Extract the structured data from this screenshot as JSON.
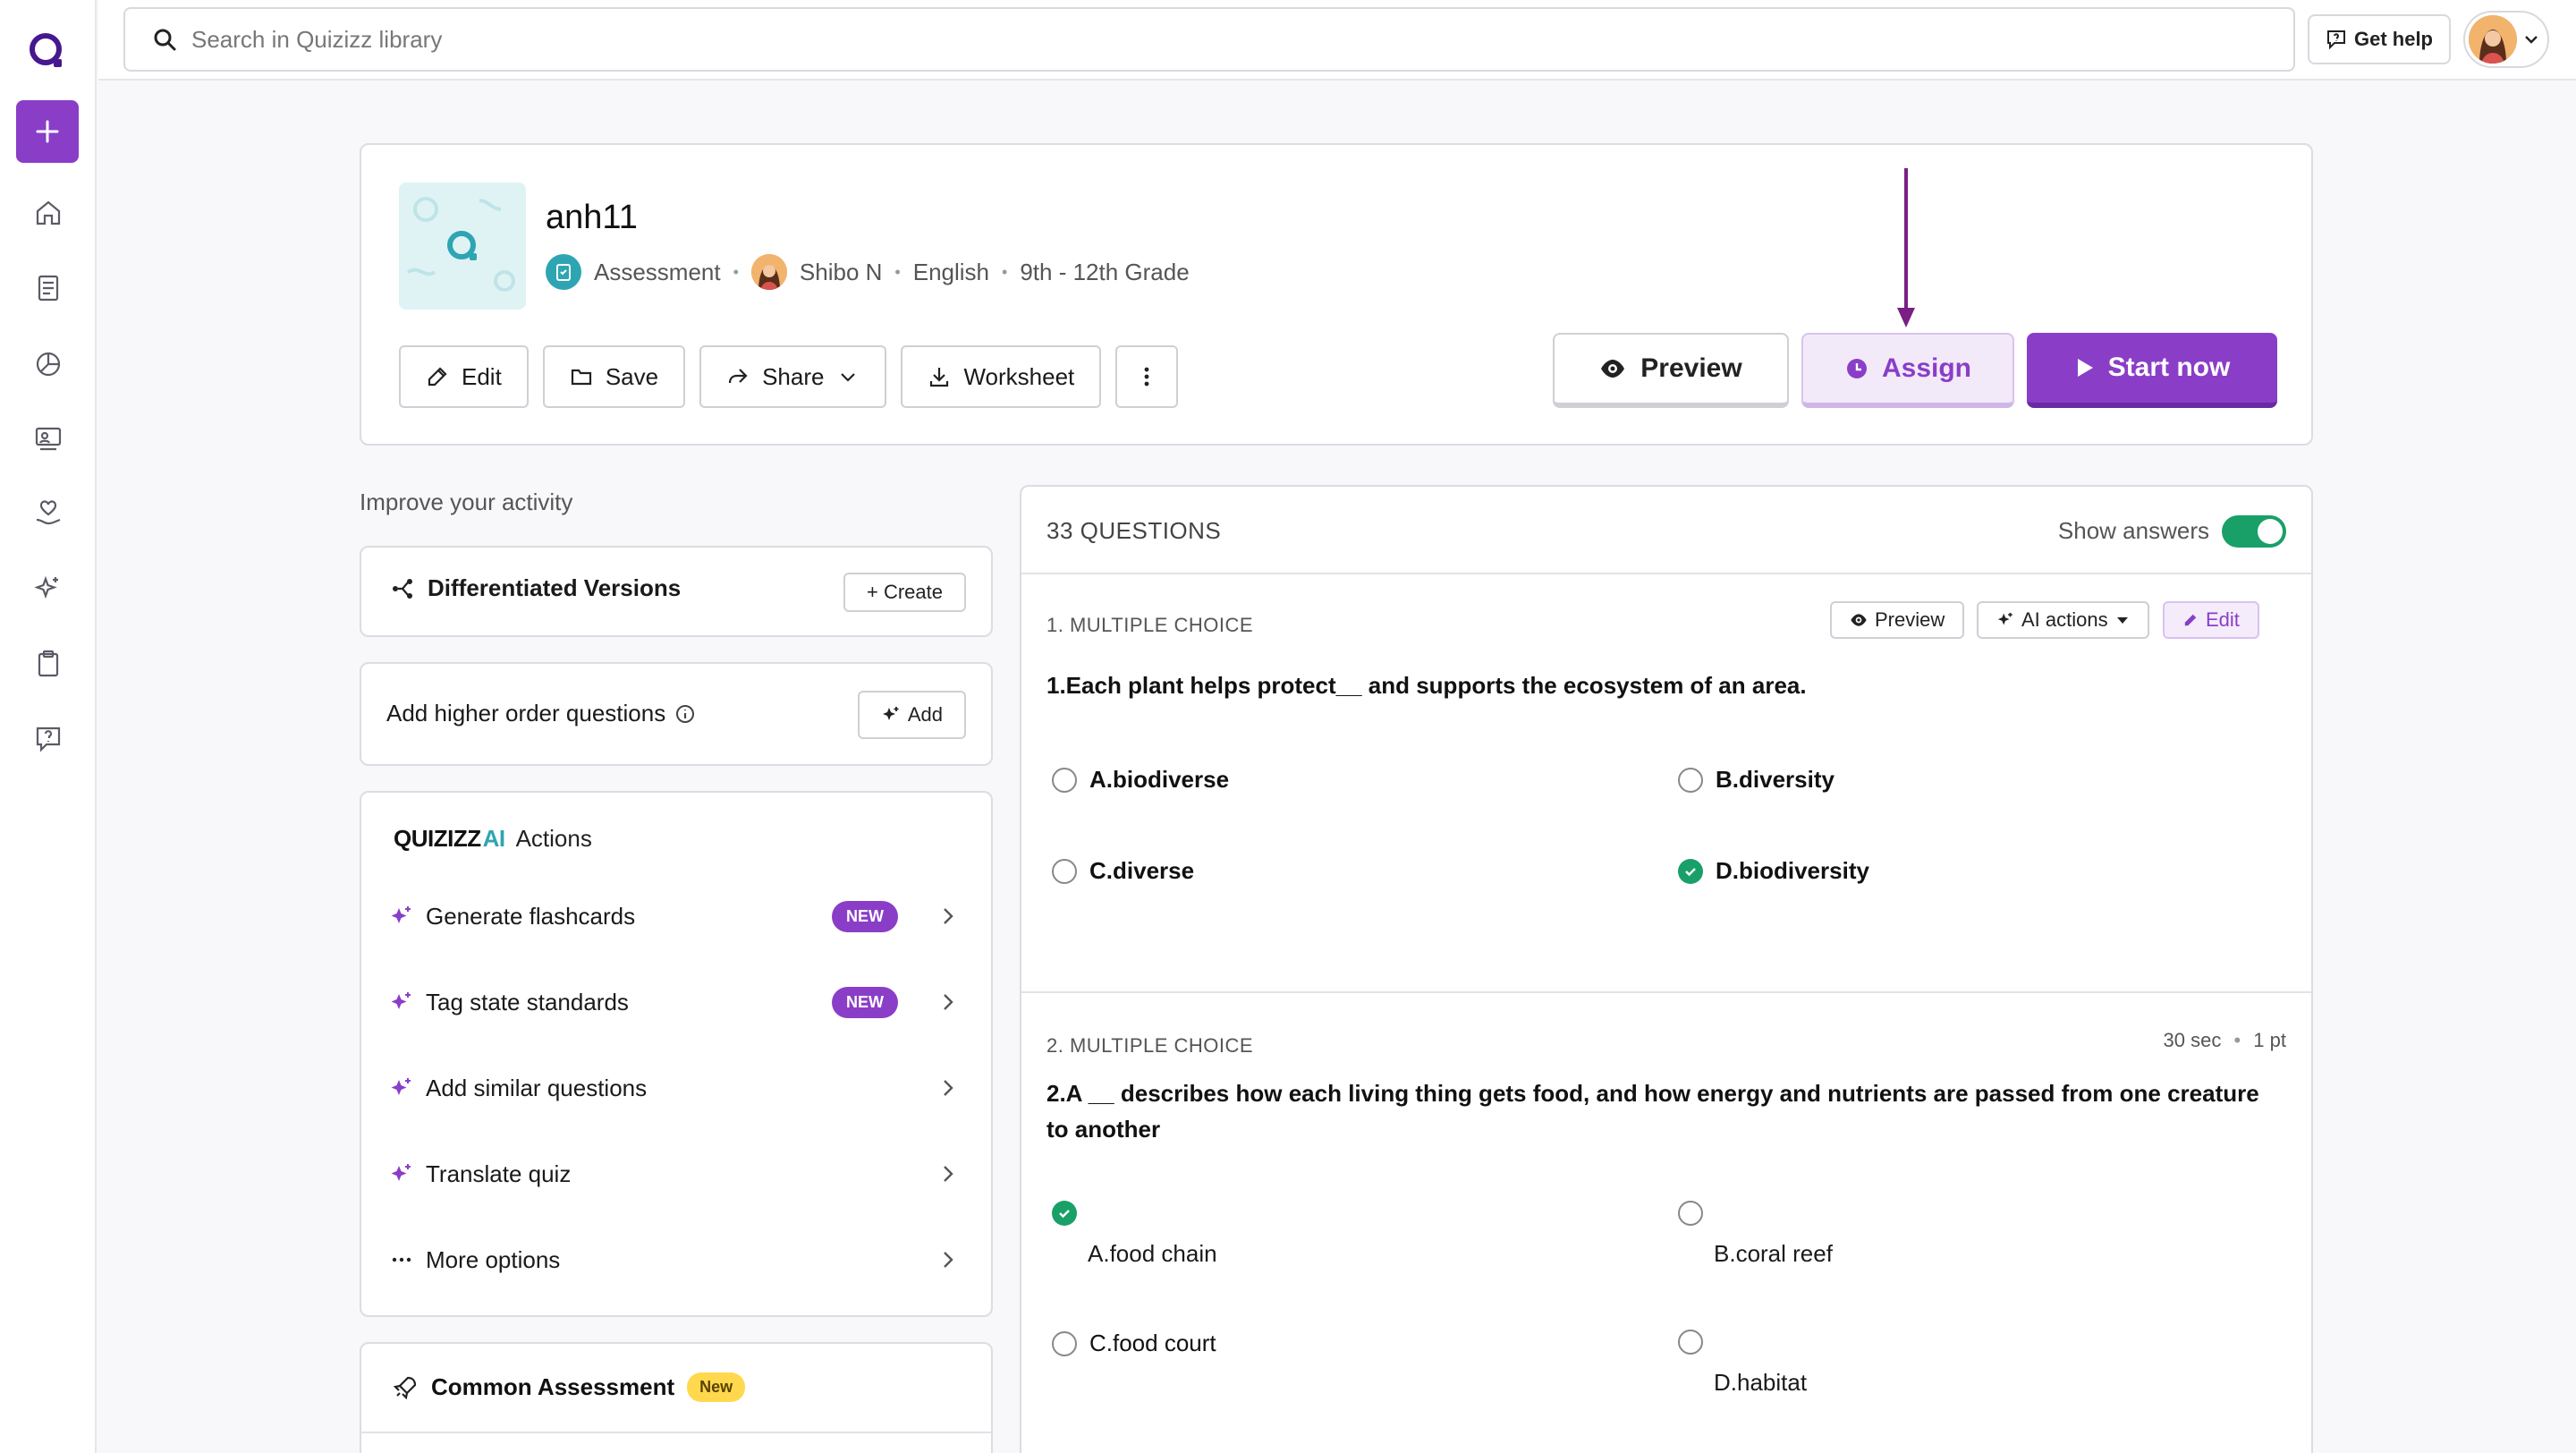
{
  "search": {
    "placeholder": "Search in Quizizz library"
  },
  "topbar": {
    "get_help": "Get help"
  },
  "quiz": {
    "title": "anh11",
    "type": "Assessment",
    "author": "Shibo N",
    "subject": "English",
    "grade": "9th - 12th Grade"
  },
  "actions": {
    "edit": "Edit",
    "save": "Save",
    "share": "Share",
    "worksheet": "Worksheet",
    "preview": "Preview",
    "assign": "Assign",
    "start": "Start now"
  },
  "improve": {
    "label": "Improve your activity",
    "differentiated": "Differentiated Versions",
    "create": "+ Create",
    "higher_order": "Add higher order questions",
    "add": "Add"
  },
  "ai_actions": {
    "brand_quizizz": "QUIZIZZ",
    "brand_ai": "AI",
    "title": "Actions",
    "items": [
      {
        "label": "Generate flashcards",
        "badge": "NEW"
      },
      {
        "label": "Tag state standards",
        "badge": "NEW"
      },
      {
        "label": "Add similar questions"
      },
      {
        "label": "Translate quiz"
      },
      {
        "label": "More options"
      }
    ]
  },
  "common_assessment": {
    "label": "Common Assessment",
    "badge": "New"
  },
  "questions": {
    "count_label": "33 QUESTIONS",
    "show_answers": "Show answers",
    "preview": "Preview",
    "ai_actions": "AI actions",
    "edit": "Edit",
    "list": [
      {
        "type": "1. MULTIPLE CHOICE",
        "text": "1.Each plant helps protect__ and supports the ecosystem of an area.",
        "options": [
          "A.biodiverse",
          "B.diversity",
          "C.diverse",
          "D.biodiversity"
        ],
        "correct_index": 3
      },
      {
        "type": "2. MULTIPLE CHOICE",
        "time": "30 sec",
        "points": "1 pt",
        "text": "2.A __ describes how each living thing gets food, and how energy and nutrients are passed from one creature to another",
        "options": [
          "A.food chain",
          "B.coral reef",
          "C.food court",
          "D.habitat"
        ],
        "correct_index": 0
      }
    ]
  },
  "colors": {
    "brand_purple": "#8a3ec7",
    "correct_green": "#19a068",
    "teal": "#2ea5b3",
    "badge_yellow": "#ffd84d"
  }
}
